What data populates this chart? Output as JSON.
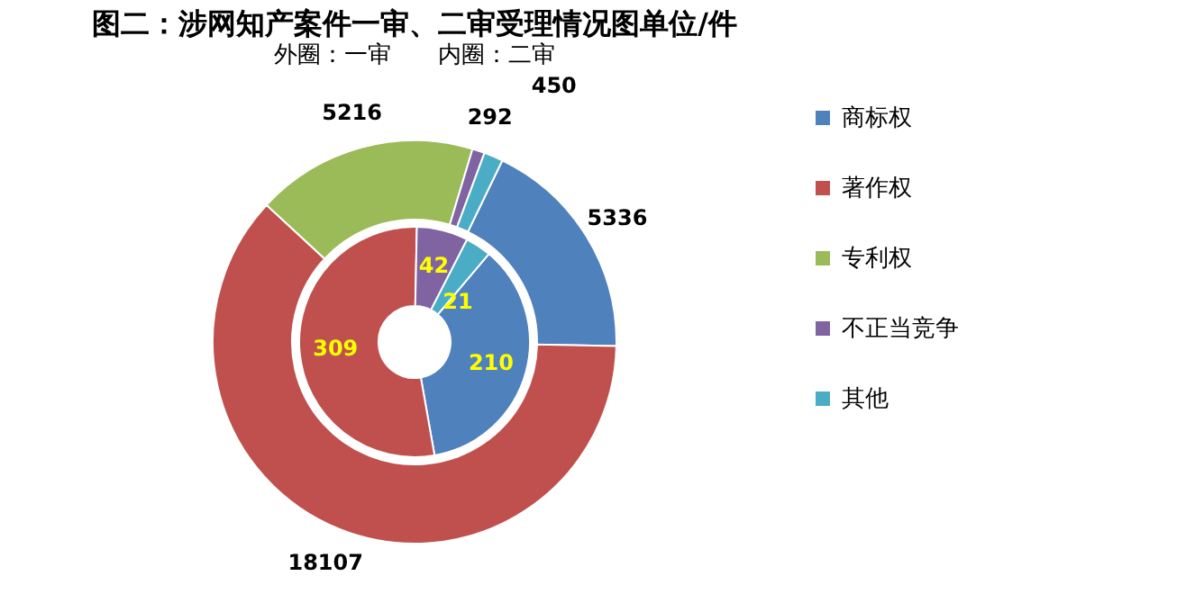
{
  "chart_data": {
    "type": "donut",
    "title": "图二：涉网知产案件一审、二审受理情况图单位/件",
    "subtitle": "外圈：一审　　内圈：二审",
    "categories": [
      "商标权",
      "著作权",
      "专利权",
      "不正当竞争",
      "其他"
    ],
    "colors": [
      "#4f81bd",
      "#c0504d",
      "#9bbb59",
      "#8064a2",
      "#4bacc6"
    ],
    "series": [
      {
        "values": [
          5336,
          18107,
          5216,
          292,
          450
        ]
      },
      {
        "values": [
          210,
          309,
          null,
          42,
          21
        ]
      }
    ],
    "data_labels": true,
    "legend": "right"
  }
}
